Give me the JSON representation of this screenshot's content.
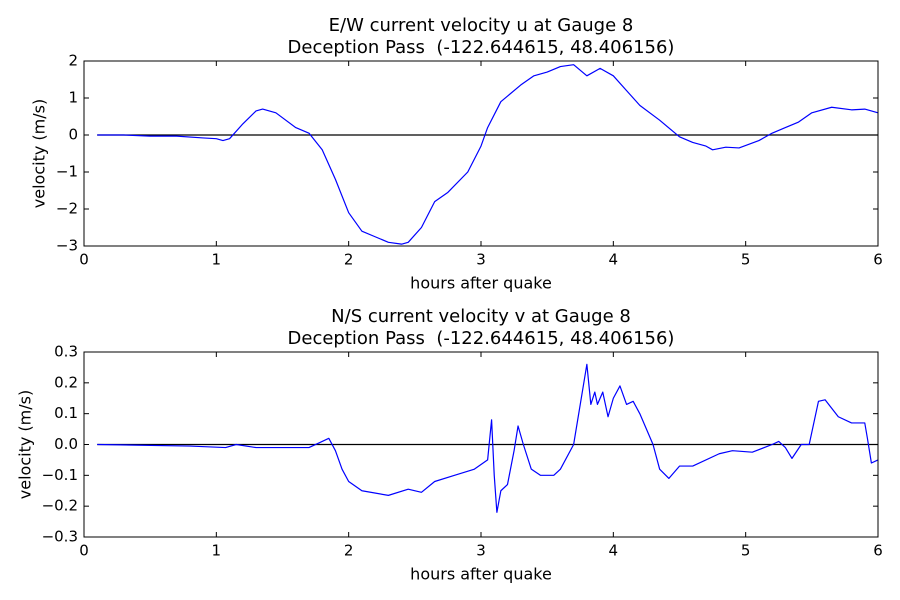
{
  "chart_data": [
    {
      "type": "line",
      "title": "E/W current velocity u at Gauge 8",
      "subtitle": "Deception Pass  (-122.644615, 48.406156)",
      "x_label": "hours after quake",
      "y_label": "velocity (m/s)",
      "color": "#0000ff",
      "hline": 0,
      "x": [
        0.1,
        0.3,
        0.5,
        0.7,
        0.9,
        1.0,
        1.05,
        1.1,
        1.2,
        1.3,
        1.35,
        1.45,
        1.6,
        1.7,
        1.8,
        1.9,
        2.0,
        2.1,
        2.2,
        2.3,
        2.4,
        2.45,
        2.55,
        2.65,
        2.75,
        2.9,
        3.0,
        3.05,
        3.15,
        3.3,
        3.4,
        3.5,
        3.6,
        3.7,
        3.8,
        3.9,
        4.0,
        4.1,
        4.2,
        4.35,
        4.5,
        4.6,
        4.7,
        4.75,
        4.85,
        4.95,
        5.1,
        5.2,
        5.3,
        5.4,
        5.5,
        5.65,
        5.8,
        5.9,
        6.0
      ],
      "values": [
        0,
        0,
        -0.03,
        -0.03,
        -0.08,
        -0.1,
        -0.15,
        -0.1,
        0.3,
        0.65,
        0.7,
        0.6,
        0.2,
        0.05,
        -0.4,
        -1.2,
        -2.1,
        -2.6,
        -2.75,
        -2.9,
        -2.95,
        -2.9,
        -2.5,
        -1.8,
        -1.55,
        -1.0,
        -0.3,
        0.2,
        0.9,
        1.35,
        1.6,
        1.7,
        1.85,
        1.9,
        1.6,
        1.8,
        1.6,
        1.2,
        0.8,
        0.4,
        -0.05,
        -0.2,
        -0.3,
        -0.4,
        -0.33,
        -0.35,
        -0.15,
        0.05,
        0.2,
        0.35,
        0.6,
        0.75,
        0.68,
        0.7,
        0.6
      ],
      "xlim": [
        0,
        6
      ],
      "xticks": [
        0,
        1,
        2,
        3,
        4,
        5,
        6
      ],
      "ylim": [
        -3,
        2
      ],
      "yticks": [
        {
          "value": -3,
          "label": "−3"
        },
        {
          "value": -2,
          "label": "−2"
        },
        {
          "value": -1,
          "label": "−1"
        },
        0,
        1,
        2
      ]
    },
    {
      "type": "line",
      "title": "N/S current velocity v at Gauge 8",
      "subtitle": "Deception Pass  (-122.644615, 48.406156)",
      "x_label": "hours after quake",
      "y_label": "velocity (m/s)",
      "color": "#0000ff",
      "hline": 0,
      "x": [
        0.1,
        0.8,
        1.07,
        1.15,
        1.3,
        1.6,
        1.7,
        1.8,
        1.85,
        1.9,
        1.95,
        2.0,
        2.1,
        2.3,
        2.45,
        2.55,
        2.65,
        2.8,
        2.95,
        3.05,
        3.08,
        3.1,
        3.12,
        3.15,
        3.2,
        3.25,
        3.28,
        3.32,
        3.38,
        3.45,
        3.55,
        3.6,
        3.7,
        3.8,
        3.83,
        3.86,
        3.88,
        3.92,
        3.96,
        4.0,
        4.05,
        4.1,
        4.15,
        4.2,
        4.3,
        4.35,
        4.42,
        4.5,
        4.6,
        4.8,
        4.9,
        5.05,
        5.2,
        5.25,
        5.3,
        5.35,
        5.42,
        5.48,
        5.55,
        5.6,
        5.7,
        5.8,
        5.9,
        5.92,
        5.95,
        6.0
      ],
      "values": [
        0,
        -0.005,
        -0.01,
        0,
        -0.01,
        -0.01,
        -0.01,
        0.01,
        0.02,
        -0.02,
        -0.08,
        -0.12,
        -0.15,
        -0.165,
        -0.145,
        -0.155,
        -0.12,
        -0.1,
        -0.08,
        -0.05,
        0.08,
        -0.1,
        -0.22,
        -0.15,
        -0.13,
        -0.02,
        0.06,
        0,
        -0.08,
        -0.1,
        -0.1,
        -0.08,
        0,
        0.26,
        0.13,
        0.17,
        0.13,
        0.17,
        0.09,
        0.15,
        0.19,
        0.13,
        0.14,
        0.1,
        0,
        -0.08,
        -0.11,
        -0.07,
        -0.07,
        -0.03,
        -0.02,
        -0.025,
        0,
        0.01,
        -0.01,
        -0.045,
        0,
        0,
        0.14,
        0.145,
        0.09,
        0.07,
        0.07,
        0.02,
        -0.06,
        -0.05
      ],
      "xlim": [
        0,
        6
      ],
      "xticks": [
        0,
        1,
        2,
        3,
        4,
        5,
        6
      ],
      "ylim": [
        -0.3,
        0.3
      ],
      "yticks": [
        {
          "value": -0.3,
          "label": "−0.3"
        },
        {
          "value": -0.2,
          "label": "−0.2"
        },
        {
          "value": -0.1,
          "label": "−0.1"
        },
        {
          "value": 0,
          "label": "0.0"
        },
        0.1,
        0.2,
        0.3
      ]
    }
  ]
}
